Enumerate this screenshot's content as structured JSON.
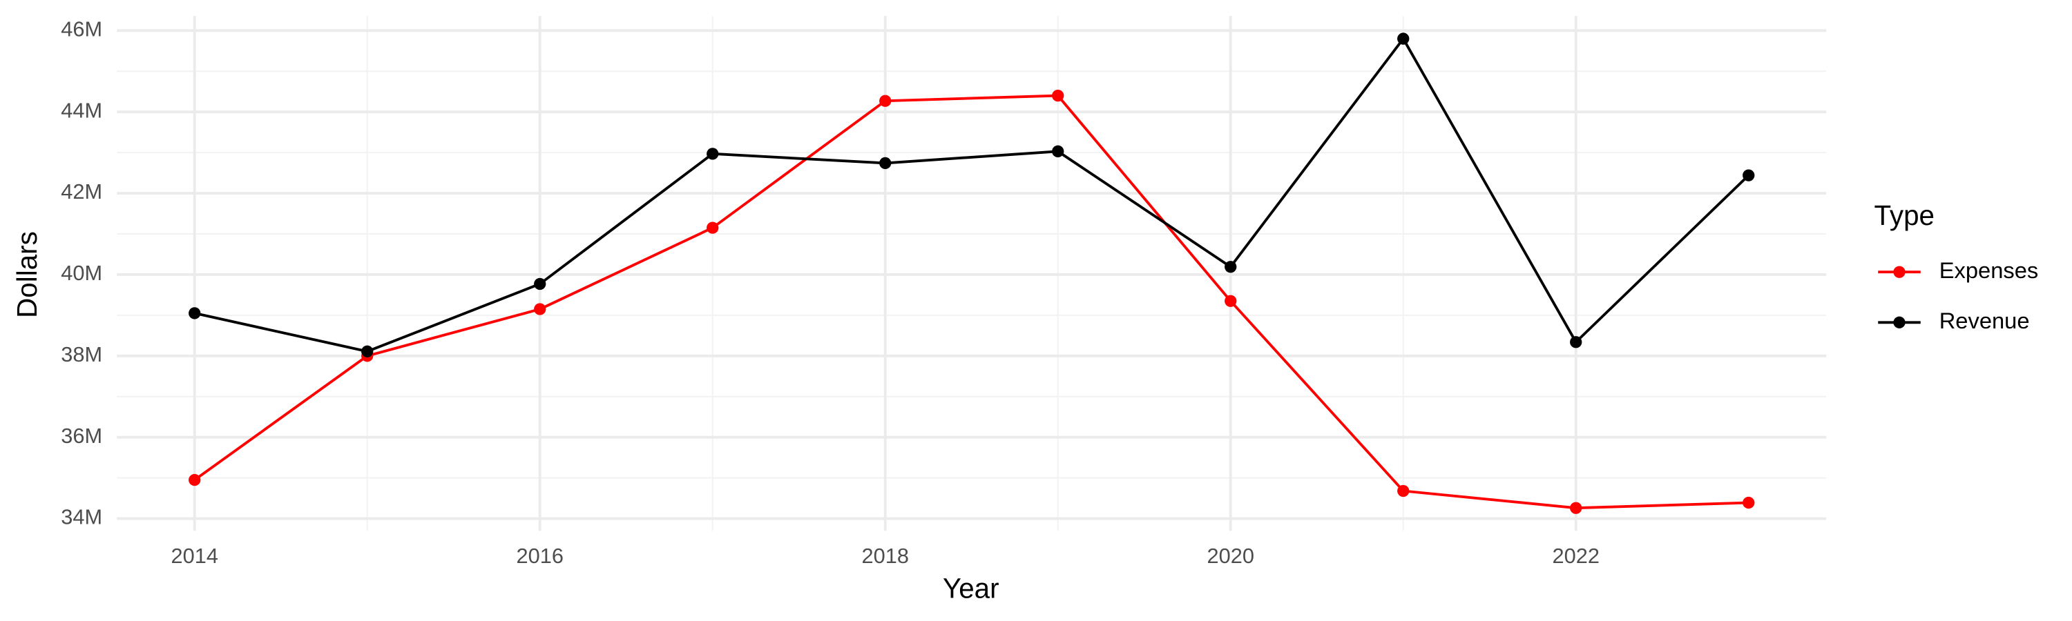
{
  "chart_data": {
    "type": "line",
    "x_label": "Year",
    "y_label": "Dollars",
    "legend_title": "Type",
    "x": [
      2014,
      2015,
      2016,
      2017,
      2018,
      2019,
      2020,
      2021,
      2022,
      2023
    ],
    "series": [
      {
        "name": "Expenses",
        "color": "#ff0000",
        "values": [
          34950000,
          38000000,
          39150000,
          41150000,
          44270000,
          44400000,
          39350000,
          34680000,
          34260000,
          34390000
        ]
      },
      {
        "name": "Revenue",
        "color": "#000000",
        "values": [
          39050000,
          38110000,
          39770000,
          42970000,
          42740000,
          43030000,
          40190000,
          45800000,
          38340000,
          42440000
        ]
      }
    ],
    "xlim": [
      2013.55,
      2023.45
    ],
    "xticks": [
      2014,
      2016,
      2018,
      2020,
      2022
    ],
    "ylim": [
      33700000,
      46360000
    ],
    "yticks": [
      {
        "value": 34000000,
        "label": "34M"
      },
      {
        "value": 36000000,
        "label": "36M"
      },
      {
        "value": 38000000,
        "label": "38M"
      },
      {
        "value": 40000000,
        "label": "40M"
      },
      {
        "value": 42000000,
        "label": "42M"
      },
      {
        "value": 44000000,
        "label": "44M"
      },
      {
        "value": 46000000,
        "label": "46M"
      }
    ],
    "grid": true,
    "minor_grid": true,
    "legend": "right"
  }
}
